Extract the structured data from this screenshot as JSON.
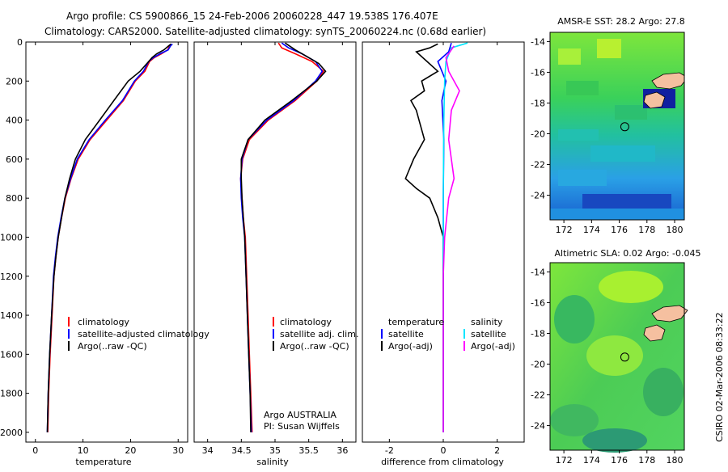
{
  "title": {
    "line1": "Argo profile: CS 5900866_15 24-Feb-2006 20060228_447 19.538S 176.407E",
    "line2": "Climatology: CARS2000. Satellite-adjusted climatology: synTS_20060224.nc (0.68d earlier)"
  },
  "side_stamp": "CSIRO 02-Mar-2006 08:33:22",
  "colors": {
    "clim": "#ff0000",
    "sat": "#0000ff",
    "argo": "#000000",
    "sal_sat": "#00e5ff",
    "sal_argo": "#ff00ff"
  },
  "chart_data": [
    {
      "type": "line",
      "xlabel": "temperature",
      "ylabel": "",
      "xlim": [
        -2,
        32
      ],
      "ylim": [
        0,
        2050
      ],
      "y_inverted": true,
      "xticks": [
        0,
        10,
        20,
        30
      ],
      "yticks": [
        0,
        200,
        400,
        600,
        800,
        1000,
        1200,
        1400,
        1600,
        1800,
        2000
      ],
      "legend": [
        "climatology",
        "satellite-adjusted climatology",
        "Argo(..raw -QC)"
      ],
      "series": [
        {
          "name": "climatology",
          "color": "#ff0000",
          "points": [
            [
              28.5,
              10
            ],
            [
              28.2,
              20
            ],
            [
              27.8,
              40
            ],
            [
              26.5,
              60
            ],
            [
              25,
              80
            ],
            [
              24,
              100
            ],
            [
              23,
              150
            ],
            [
              21,
              200
            ],
            [
              18.5,
              300
            ],
            [
              15,
              400
            ],
            [
              11.5,
              500
            ],
            [
              9,
              600
            ],
            [
              7.5,
              700
            ],
            [
              6.3,
              800
            ],
            [
              5.5,
              900
            ],
            [
              4.8,
              1000
            ],
            [
              4.3,
              1100
            ],
            [
              3.9,
              1200
            ],
            [
              3.5,
              1400
            ],
            [
              3.1,
              1600
            ],
            [
              2.8,
              1800
            ],
            [
              2.6,
              2000
            ]
          ]
        },
        {
          "name": "satellite-adjusted climatology",
          "color": "#0000ff",
          "points": [
            [
              28.8,
              10
            ],
            [
              28.4,
              20
            ],
            [
              27.9,
              40
            ],
            [
              26.2,
              60
            ],
            [
              24.8,
              80
            ],
            [
              23.8,
              100
            ],
            [
              22.7,
              150
            ],
            [
              20.8,
              200
            ],
            [
              18.3,
              300
            ],
            [
              14.7,
              400
            ],
            [
              11.3,
              500
            ],
            [
              8.8,
              600
            ],
            [
              7.4,
              700
            ],
            [
              6.2,
              800
            ],
            [
              5.4,
              900
            ],
            [
              4.7,
              1000
            ],
            [
              4.2,
              1100
            ],
            [
              3.8,
              1200
            ],
            [
              3.4,
              1400
            ],
            [
              3.0,
              1600
            ],
            [
              2.7,
              1800
            ],
            [
              2.5,
              2000
            ]
          ]
        },
        {
          "name": "Argo(..raw -QC)",
          "color": "#000000",
          "points": [
            [
              28.5,
              10
            ],
            [
              28,
              20
            ],
            [
              27,
              40
            ],
            [
              25.5,
              60
            ],
            [
              24.5,
              80
            ],
            [
              23.8,
              100
            ],
            [
              22,
              150
            ],
            [
              19.5,
              200
            ],
            [
              16.5,
              300
            ],
            [
              13.5,
              400
            ],
            [
              10.5,
              500
            ],
            [
              8.4,
              600
            ],
            [
              7.2,
              700
            ],
            [
              6.2,
              800
            ],
            [
              5.5,
              900
            ],
            [
              4.8,
              1000
            ],
            [
              4.3,
              1100
            ],
            [
              3.9,
              1200
            ],
            [
              3.4,
              1400
            ],
            [
              3.0,
              1600
            ],
            [
              2.7,
              1800
            ],
            [
              2.5,
              2000
            ]
          ]
        }
      ]
    },
    {
      "type": "line",
      "xlabel": "salinity",
      "xlim": [
        33.8,
        36.2
      ],
      "ylim": [
        0,
        2050
      ],
      "y_inverted": true,
      "xticks": [
        34,
        34.5,
        35,
        35.5,
        36
      ],
      "xticklabels": [
        "34",
        "34.5",
        "35",
        "35.5",
        "36"
      ],
      "legend": [
        "climatology",
        "satellite adj. clim.",
        "Argo(..raw -QC)"
      ],
      "annotation": [
        "Argo AUSTRALIA",
        "PI: Susan Wijffels"
      ],
      "series": [
        {
          "name": "climatology",
          "color": "#ff0000",
          "points": [
            [
              35.05,
              5
            ],
            [
              35.1,
              30
            ],
            [
              35.3,
              60
            ],
            [
              35.55,
              100
            ],
            [
              35.72,
              150
            ],
            [
              35.62,
              200
            ],
            [
              35.3,
              300
            ],
            [
              34.9,
              400
            ],
            [
              34.62,
              500
            ],
            [
              34.52,
              600
            ],
            [
              34.49,
              700
            ],
            [
              34.51,
              800
            ],
            [
              34.53,
              900
            ],
            [
              34.56,
              1000
            ],
            [
              34.58,
              1200
            ],
            [
              34.6,
              1400
            ],
            [
              34.62,
              1600
            ],
            [
              34.64,
              1800
            ],
            [
              34.66,
              2000
            ]
          ]
        },
        {
          "name": "satellite adj. clim.",
          "color": "#0000ff",
          "points": [
            [
              35.1,
              5
            ],
            [
              35.2,
              30
            ],
            [
              35.4,
              60
            ],
            [
              35.6,
              100
            ],
            [
              35.7,
              150
            ],
            [
              35.6,
              200
            ],
            [
              35.28,
              300
            ],
            [
              34.88,
              400
            ],
            [
              34.6,
              500
            ],
            [
              34.51,
              600
            ],
            [
              34.49,
              700
            ],
            [
              34.5,
              800
            ],
            [
              34.52,
              900
            ],
            [
              34.55,
              1000
            ],
            [
              34.57,
              1200
            ],
            [
              34.59,
              1400
            ],
            [
              34.61,
              1600
            ],
            [
              34.63,
              1800
            ],
            [
              34.65,
              2000
            ]
          ]
        },
        {
          "name": "Argo(..raw -QC)",
          "color": "#000000",
          "points": [
            [
              35.15,
              5
            ],
            [
              35.3,
              40
            ],
            [
              35.5,
              80
            ],
            [
              35.65,
              110
            ],
            [
              35.75,
              150
            ],
            [
              35.62,
              200
            ],
            [
              35.25,
              300
            ],
            [
              34.85,
              400
            ],
            [
              34.6,
              500
            ],
            [
              34.5,
              600
            ],
            [
              34.5,
              700
            ],
            [
              34.51,
              800
            ],
            [
              34.53,
              900
            ],
            [
              34.55,
              1000
            ],
            [
              34.57,
              1200
            ],
            [
              34.59,
              1400
            ],
            [
              34.61,
              1600
            ],
            [
              34.63,
              1800
            ],
            [
              34.64,
              2000
            ]
          ]
        }
      ]
    },
    {
      "type": "line",
      "xlabel": "difference from climatology",
      "xlim": [
        -3,
        3
      ],
      "ylim": [
        0,
        2050
      ],
      "y_inverted": true,
      "xticks": [
        -2,
        0,
        2
      ],
      "legend_left": [
        "temperature",
        "satellite",
        "Argo(-adj)"
      ],
      "legend_right": [
        "salinity",
        "satellite",
        "Argo(-adj)"
      ],
      "series": [
        {
          "name": "temperature satellite",
          "color": "#0000ff",
          "points": [
            [
              0.3,
              5
            ],
            [
              0.2,
              50
            ],
            [
              -0.2,
              100
            ],
            [
              0.1,
              200
            ],
            [
              -0.05,
              300
            ],
            [
              0.02,
              500
            ],
            [
              0,
              800
            ],
            [
              0,
              1200
            ],
            [
              0,
              2000
            ]
          ]
        },
        {
          "name": "temperature Argo(-adj)",
          "color": "#000000",
          "points": [
            [
              -0.2,
              10
            ],
            [
              -0.5,
              30
            ],
            [
              -1.0,
              50
            ],
            [
              -0.6,
              100
            ],
            [
              -0.2,
              150
            ],
            [
              -0.8,
              200
            ],
            [
              -0.7,
              250
            ],
            [
              -1.2,
              300
            ],
            [
              -1.0,
              350
            ],
            [
              -0.9,
              400
            ],
            [
              -0.7,
              500
            ],
            [
              -1.1,
              600
            ],
            [
              -1.4,
              700
            ],
            [
              -1.0,
              750
            ],
            [
              -0.5,
              800
            ],
            [
              -0.2,
              900
            ],
            [
              0,
              1000
            ],
            [
              0,
              1500
            ],
            [
              0,
              2000
            ]
          ]
        },
        {
          "name": "salinity satellite",
          "color": "#00e5ff",
          "points": [
            [
              0.9,
              5
            ],
            [
              0.3,
              30
            ],
            [
              0.1,
              100
            ],
            [
              0.05,
              200
            ],
            [
              0.02,
              400
            ],
            [
              0.01,
              600
            ],
            [
              0,
              800
            ],
            [
              0,
              1200
            ],
            [
              0,
              2000
            ]
          ]
        },
        {
          "name": "salinity Argo(-adj)",
          "color": "#ff00ff",
          "points": [
            [
              0.4,
              20
            ],
            [
              0.1,
              80
            ],
            [
              0.2,
              150
            ],
            [
              0.6,
              250
            ],
            [
              0.3,
              350
            ],
            [
              0.2,
              500
            ],
            [
              0.4,
              700
            ],
            [
              0.2,
              800
            ],
            [
              0.05,
              1000
            ],
            [
              0,
              1200
            ],
            [
              0,
              2000
            ]
          ]
        }
      ]
    },
    {
      "type": "heatmap",
      "title": "AMSR-E SST: 28.2  Argo: 27.8",
      "xlim": [
        171,
        180.7
      ],
      "ylim": [
        -25.6,
        -13.4
      ],
      "xticks": [
        172,
        174,
        176,
        178,
        180
      ],
      "yticks": [
        -14,
        -16,
        -18,
        -20,
        -22,
        -24
      ],
      "marker": [
        176.4,
        -19.54
      ]
    },
    {
      "type": "heatmap",
      "title": "Altimetric SLA: 0.02  Argo: -0.045",
      "xlim": [
        171,
        180.7
      ],
      "ylim": [
        -25.6,
        -13.4
      ],
      "xticks": [
        172,
        174,
        176,
        178,
        180
      ],
      "yticks": [
        -14,
        -16,
        -18,
        -20,
        -22,
        -24
      ],
      "marker": [
        176.4,
        -19.54
      ]
    }
  ]
}
